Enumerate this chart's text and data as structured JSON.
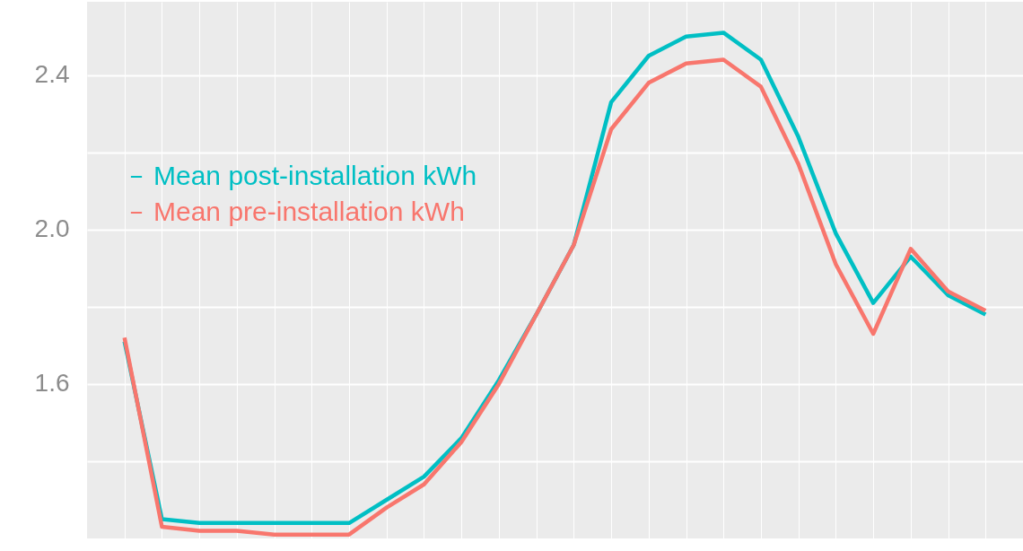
{
  "chart_data": {
    "type": "line",
    "categories": [
      null,
      null,
      null,
      null,
      null,
      null,
      null,
      null,
      null,
      null,
      null,
      null,
      null,
      null,
      null,
      null,
      null,
      null,
      null,
      null,
      null,
      null,
      null,
      null
    ],
    "series": [
      {
        "name": "Mean post-installation kWh",
        "color": "#00bfc4",
        "values": [
          1.71,
          1.25,
          1.24,
          1.24,
          1.24,
          1.24,
          1.24,
          1.3,
          1.36,
          1.46,
          1.61,
          1.78,
          1.96,
          2.33,
          2.45,
          2.5,
          2.51,
          2.44,
          2.24,
          1.99,
          1.81,
          1.93,
          1.83,
          1.78
        ]
      },
      {
        "name": "Mean pre-installation kWh",
        "color": "#f8766d",
        "values": [
          1.72,
          1.23,
          1.22,
          1.22,
          1.21,
          1.21,
          1.21,
          1.28,
          1.34,
          1.45,
          1.6,
          1.78,
          1.96,
          2.26,
          2.38,
          2.43,
          2.44,
          2.37,
          2.17,
          1.91,
          1.73,
          1.95,
          1.84,
          1.79
        ]
      }
    ],
    "ylim": [
      1.2,
      2.59
    ],
    "yticks": [
      {
        "value": 1.4,
        "label": null
      },
      1.6,
      {
        "value": 1.8,
        "label": null
      },
      {
        "value": 2.0,
        "label": "2.0"
      },
      {
        "value": 2.2,
        "label": null
      },
      2.4
    ],
    "grid": true,
    "legend": "top left",
    "tick_labels": "y",
    "marker": "none",
    "line_style": "solid"
  }
}
